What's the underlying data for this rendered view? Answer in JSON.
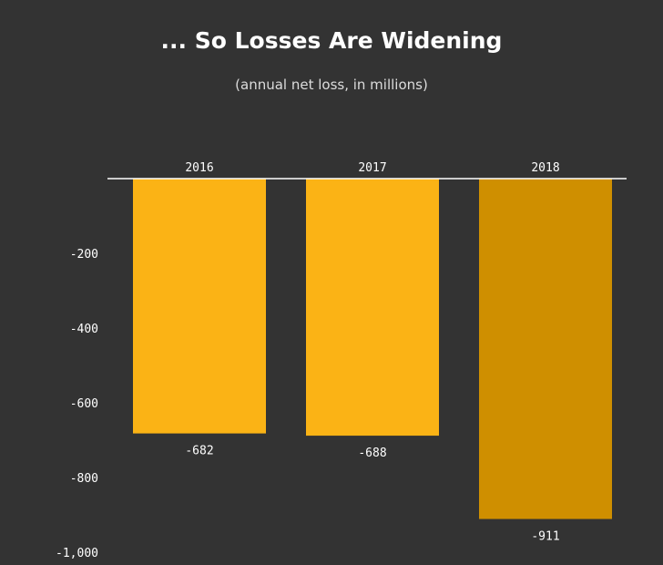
{
  "colors": {
    "background": "#333333",
    "bar": "#fbb315",
    "bar_highlight": "#cf8f00",
    "text": "#ffffff",
    "axis": "#ffffff"
  },
  "chart_data": {
    "type": "bar",
    "title": "... So Losses Are Widening",
    "subtitle": "(annual net loss, in millions)",
    "categories": [
      "2016",
      "2017",
      "2018"
    ],
    "values": [
      -682,
      -688,
      -911
    ],
    "value_labels": [
      "-682",
      "-688",
      "-911"
    ],
    "highlight_index": 2,
    "ylim": [
      -1000,
      0
    ],
    "yticks": [
      -200,
      -400,
      -600,
      -800,
      -1000
    ],
    "ytick_labels": [
      "-200",
      "-400",
      "-600",
      "-800",
      "-1,000"
    ],
    "grid": false,
    "xlabel": "",
    "ylabel": ""
  }
}
